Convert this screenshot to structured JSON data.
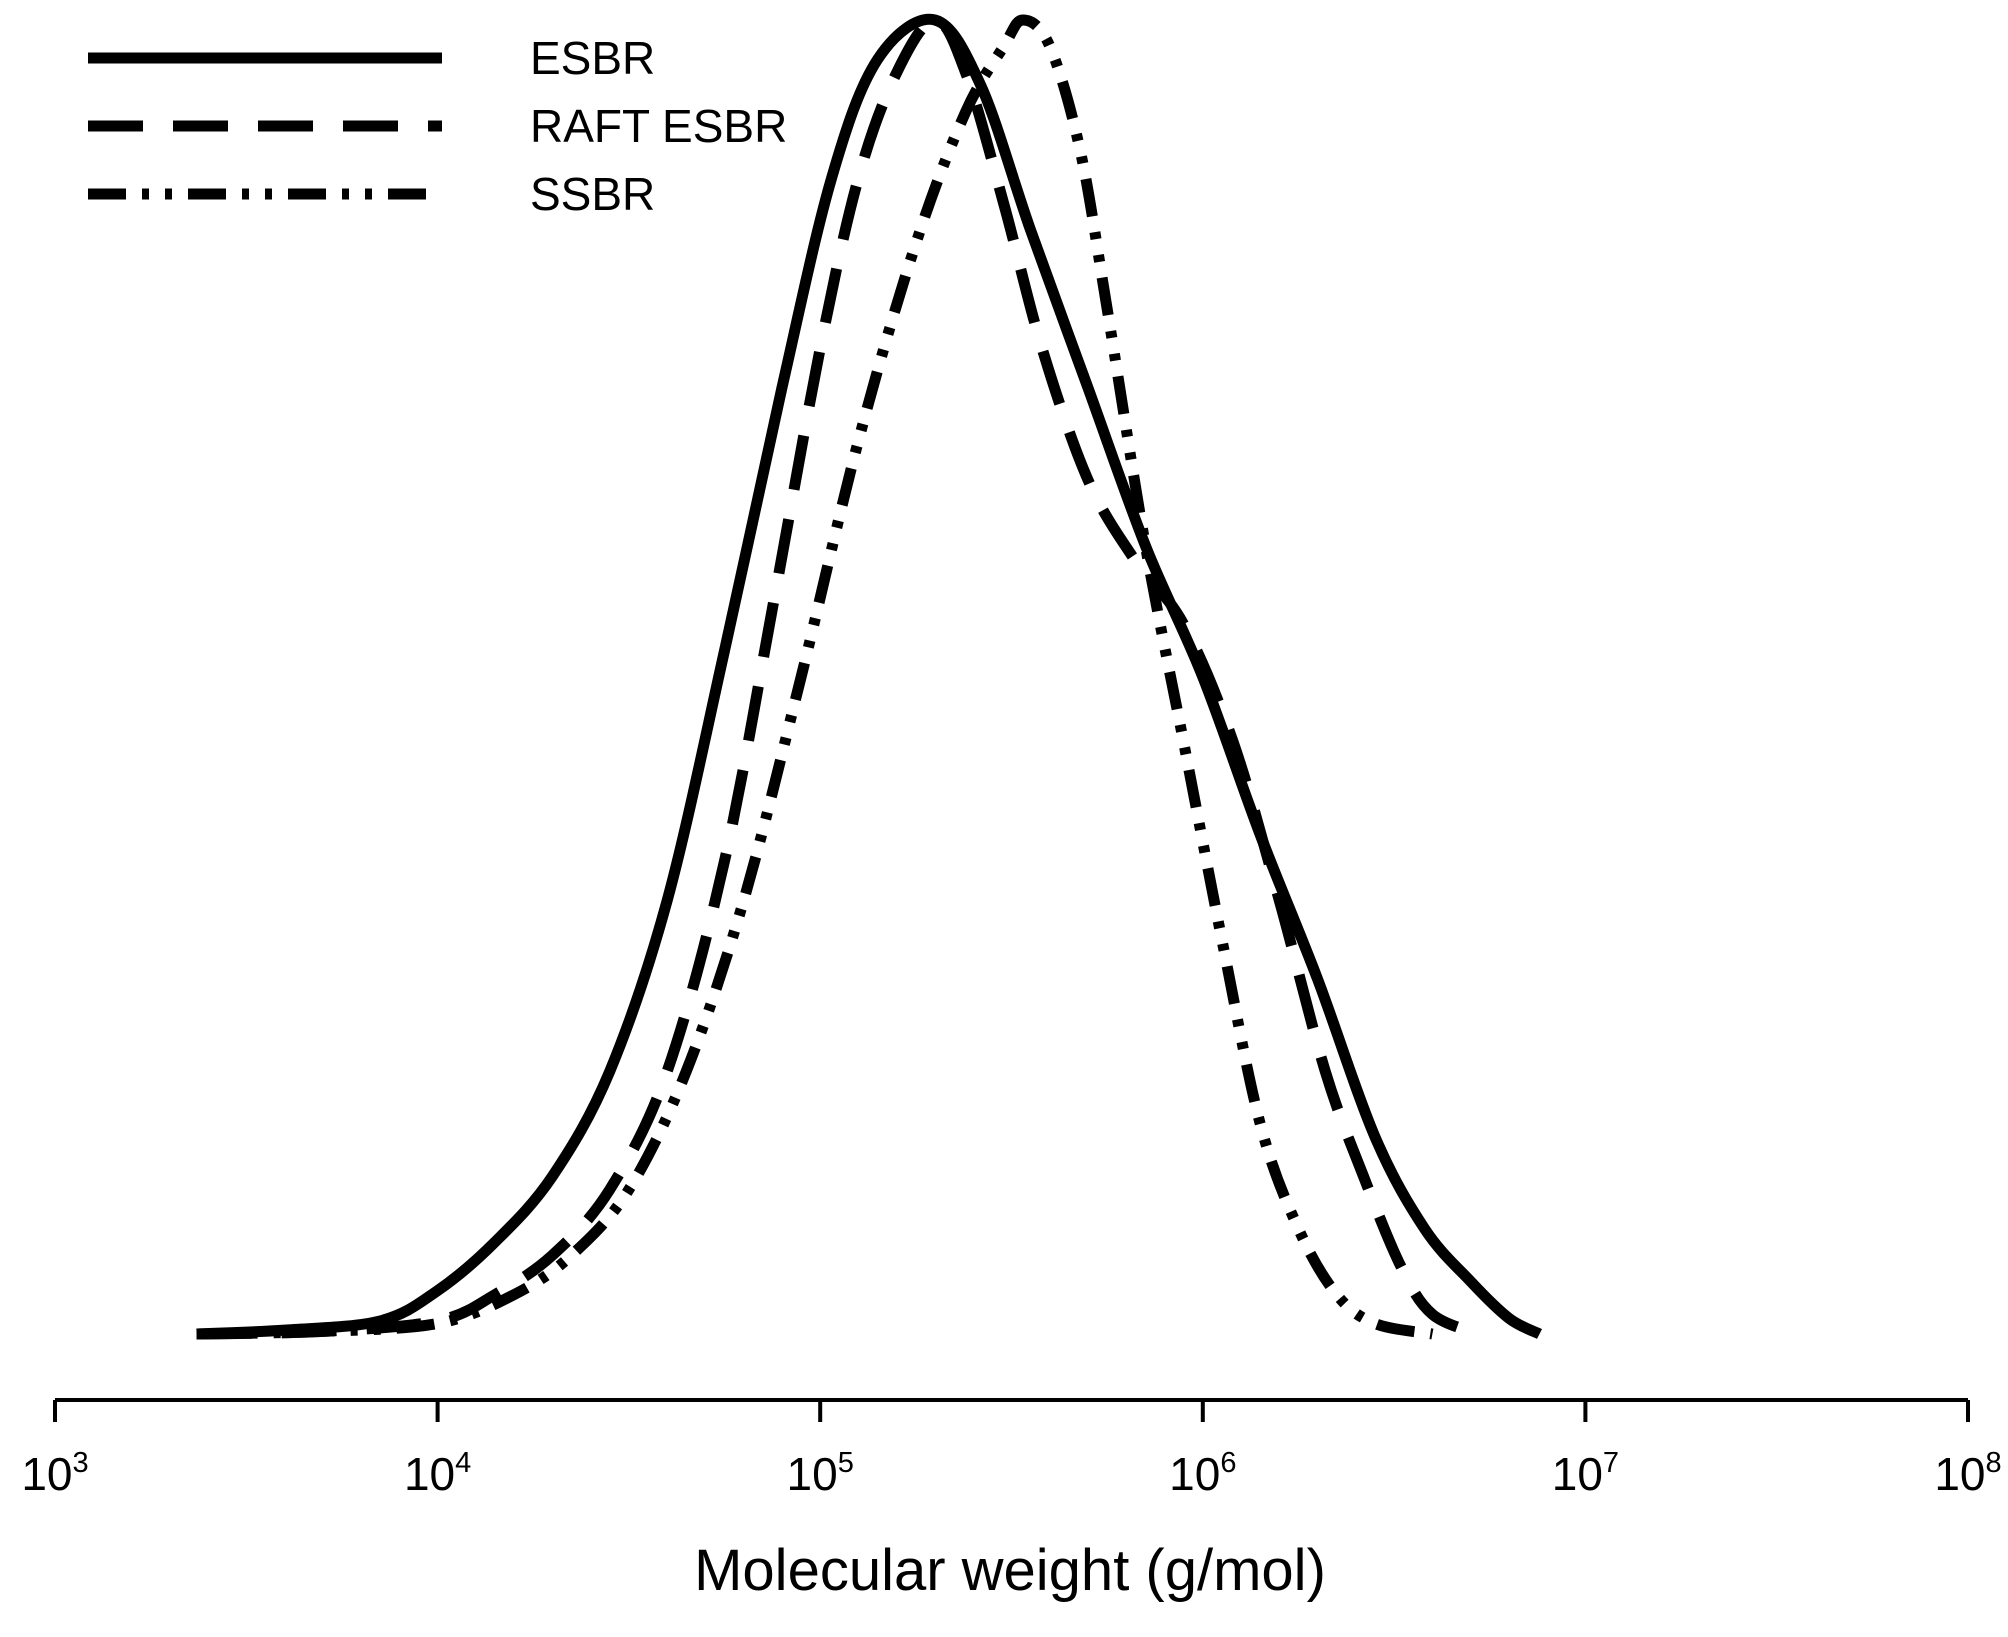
{
  "chart_data": {
    "type": "line",
    "title": "",
    "xlabel": "Molecular weight (g/mol)",
    "ylabel": "",
    "xscale": "log",
    "xlim": [
      1000,
      100000000
    ],
    "ylim": [
      0,
      1.0
    ],
    "y_axis_visible": false,
    "grid": false,
    "legend_position": "top-left",
    "x_ticks": [
      {
        "base": "10",
        "exp": "3",
        "value": 1000
      },
      {
        "base": "10",
        "exp": "4",
        "value": 10000
      },
      {
        "base": "10",
        "exp": "5",
        "value": 100000
      },
      {
        "base": "10",
        "exp": "6",
        "value": 1000000
      },
      {
        "base": "10",
        "exp": "7",
        "value": 10000000
      },
      {
        "base": "10",
        "exp": "8",
        "value": 100000000
      }
    ],
    "series": [
      {
        "name": "ESBR",
        "style": "solid",
        "points": [
          [
            3.37,
            0.0
          ],
          [
            3.6,
            0.003
          ],
          [
            3.85,
            0.01
          ],
          [
            4.0,
            0.033
          ],
          [
            4.15,
            0.07
          ],
          [
            4.3,
            0.12
          ],
          [
            4.45,
            0.2
          ],
          [
            4.6,
            0.33
          ],
          [
            4.75,
            0.52
          ],
          [
            4.9,
            0.72
          ],
          [
            5.03,
            0.88
          ],
          [
            5.15,
            0.97
          ],
          [
            5.3,
            1.0
          ],
          [
            5.42,
            0.95
          ],
          [
            5.55,
            0.84
          ],
          [
            5.7,
            0.72
          ],
          [
            5.85,
            0.6
          ],
          [
            6.0,
            0.5
          ],
          [
            6.15,
            0.38
          ],
          [
            6.3,
            0.27
          ],
          [
            6.45,
            0.15
          ],
          [
            6.58,
            0.08
          ],
          [
            6.7,
            0.04
          ],
          [
            6.8,
            0.012
          ],
          [
            6.88,
            0.0
          ]
        ]
      },
      {
        "name": "RAFT ESBR",
        "style": "dashed",
        "points": [
          [
            3.37,
            0.0
          ],
          [
            3.7,
            0.002
          ],
          [
            4.0,
            0.01
          ],
          [
            4.15,
            0.03
          ],
          [
            4.3,
            0.06
          ],
          [
            4.45,
            0.11
          ],
          [
            4.6,
            0.2
          ],
          [
            4.75,
            0.36
          ],
          [
            4.88,
            0.56
          ],
          [
            5.0,
            0.75
          ],
          [
            5.1,
            0.88
          ],
          [
            5.2,
            0.96
          ],
          [
            5.3,
            1.0
          ],
          [
            5.38,
            0.96
          ],
          [
            5.48,
            0.86
          ],
          [
            5.58,
            0.75
          ],
          [
            5.7,
            0.65
          ],
          [
            5.82,
            0.59
          ],
          [
            5.95,
            0.54
          ],
          [
            6.08,
            0.45
          ],
          [
            6.2,
            0.33
          ],
          [
            6.32,
            0.2
          ],
          [
            6.42,
            0.12
          ],
          [
            6.52,
            0.05
          ],
          [
            6.6,
            0.015
          ],
          [
            6.72,
            0.0
          ]
        ]
      },
      {
        "name": "SSBR",
        "style": "dash-dot-dot",
        "points": [
          [
            3.37,
            0.0
          ],
          [
            3.7,
            0.002
          ],
          [
            4.0,
            0.008
          ],
          [
            4.2,
            0.03
          ],
          [
            4.35,
            0.06
          ],
          [
            4.5,
            0.11
          ],
          [
            4.65,
            0.2
          ],
          [
            4.8,
            0.33
          ],
          [
            4.95,
            0.5
          ],
          [
            5.1,
            0.68
          ],
          [
            5.25,
            0.83
          ],
          [
            5.38,
            0.93
          ],
          [
            5.48,
            0.98
          ],
          [
            5.53,
            1.0
          ],
          [
            5.6,
            0.98
          ],
          [
            5.68,
            0.9
          ],
          [
            5.75,
            0.78
          ],
          [
            5.85,
            0.6
          ],
          [
            5.95,
            0.45
          ],
          [
            6.05,
            0.3
          ],
          [
            6.15,
            0.16
          ],
          [
            6.25,
            0.08
          ],
          [
            6.35,
            0.03
          ],
          [
            6.45,
            0.008
          ],
          [
            6.6,
            0.0
          ]
        ]
      }
    ]
  }
}
